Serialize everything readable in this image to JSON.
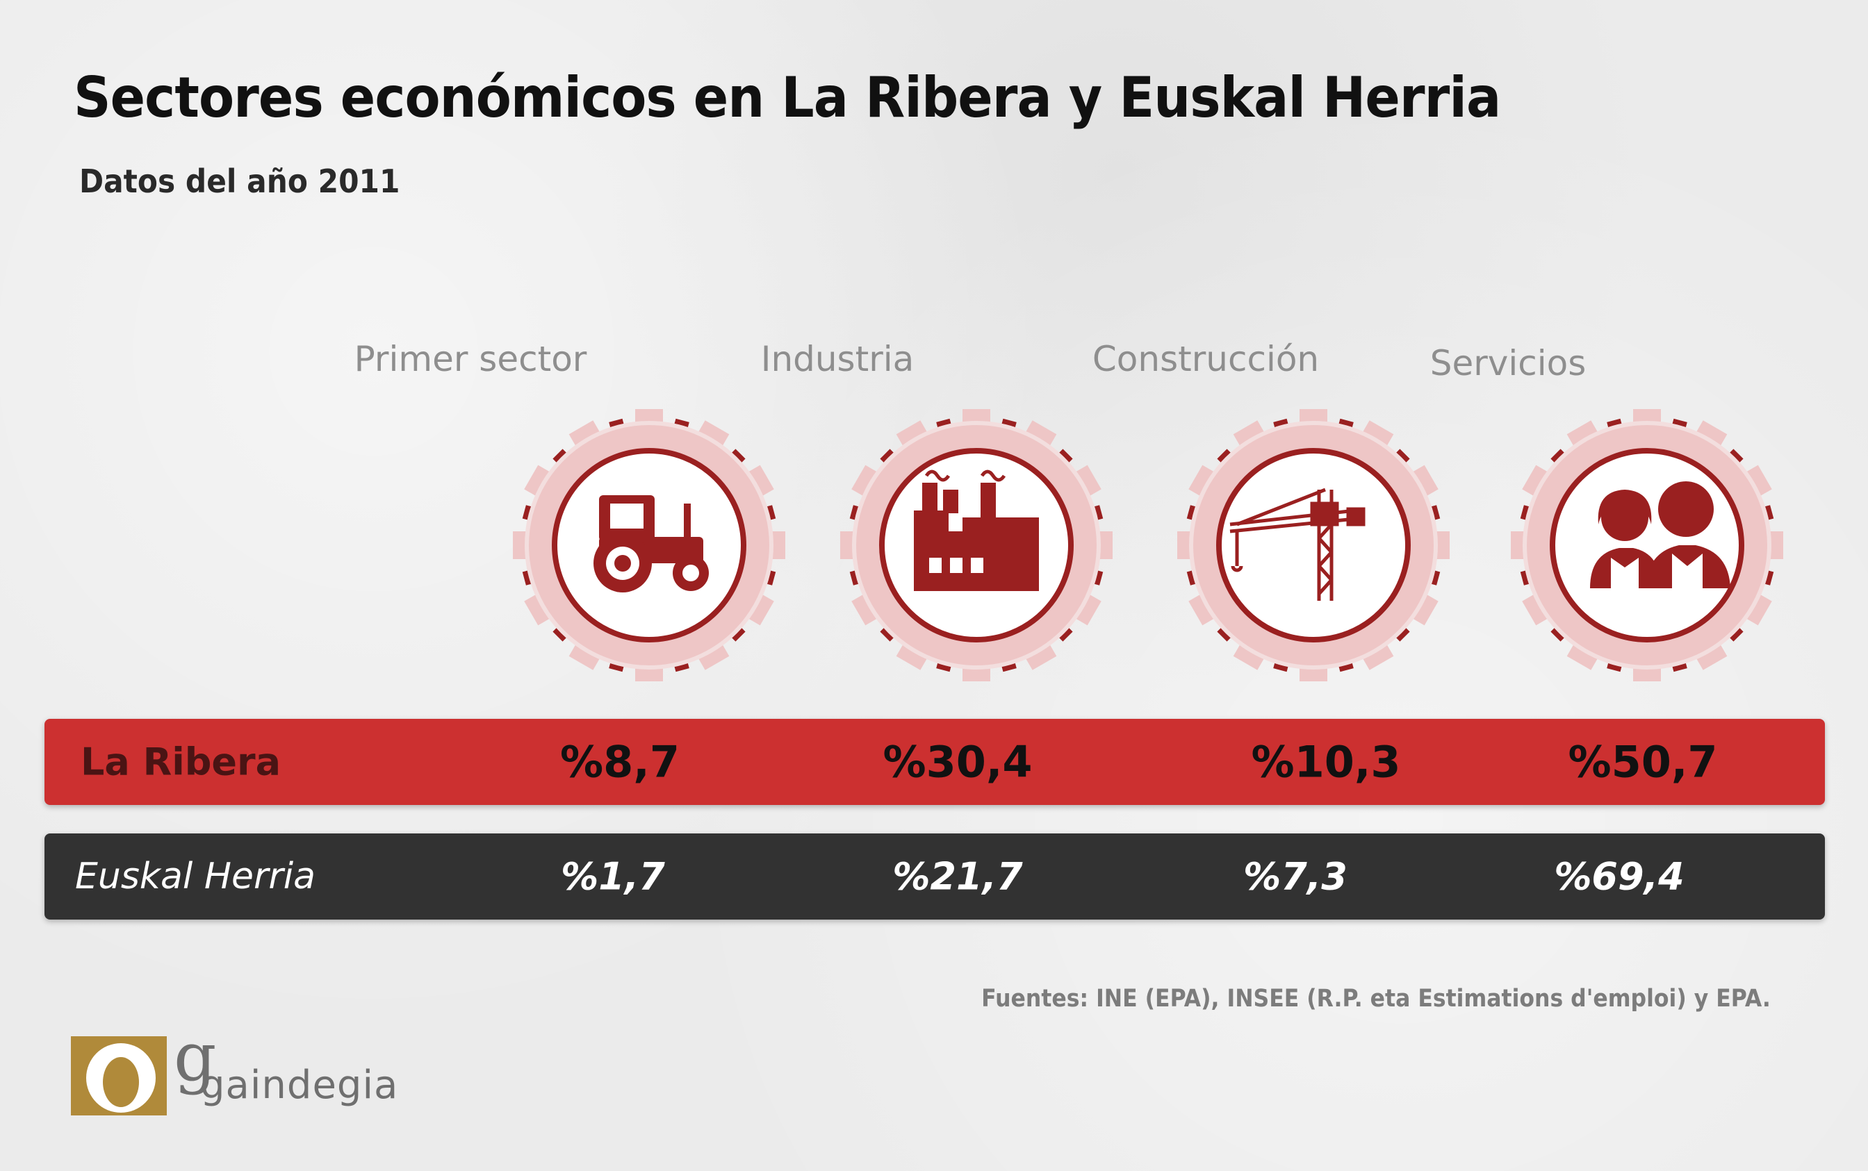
{
  "header": {
    "title": "Sectores económicos en La Ribera y Euskal Herria",
    "subtitle": "Datos del año 2011"
  },
  "sectors": [
    {
      "label": "Primer sector",
      "icon": "tractor-icon"
    },
    {
      "label": "Industria",
      "icon": "factory-icon"
    },
    {
      "label": "Construcción",
      "icon": "crane-icon"
    },
    {
      "label": "Servicios",
      "icon": "people-icon"
    }
  ],
  "rows": {
    "ribera": {
      "label": "La Ribera",
      "values": [
        "%8,7",
        "%30,4",
        "%10,3",
        "%50,7"
      ]
    },
    "euskal": {
      "label": "Euskal Herria",
      "values": [
        "%1,7",
        "%21,7",
        "%7,3",
        "%69,4"
      ]
    }
  },
  "footer": {
    "sources": "Fuentes: INE (EPA), INSEE (R.P. eta Estimations d'emploi) y EPA.",
    "logo_text": "gaindegia"
  },
  "colors": {
    "accent_red": "#cc3030",
    "icon_red": "#9a2020",
    "gear_pink": "#eec6c6",
    "dark_bar": "#323232",
    "logo_gold": "#b08a3a"
  }
}
